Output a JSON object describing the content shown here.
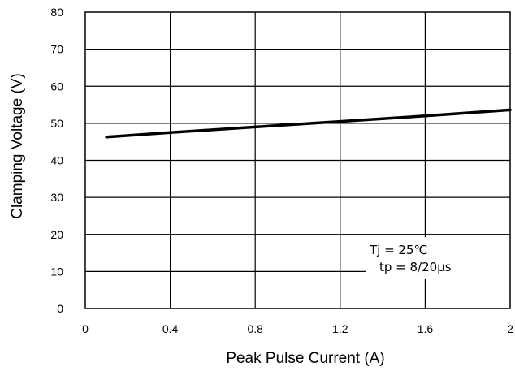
{
  "chart_data": {
    "type": "line",
    "title": "",
    "xlabel": "Peak Pulse Current (A)",
    "ylabel": "Clamping Voltage (V)",
    "xlim": [
      0,
      2
    ],
    "ylim": [
      0,
      80
    ],
    "x_ticks": [
      {
        "value": 0,
        "label": "0"
      },
      {
        "value": 0.4,
        "label": "0.4"
      },
      {
        "value": 0.8,
        "label": "0.8"
      },
      {
        "value": 1.2,
        "label": "1.2"
      },
      {
        "value": 1.6,
        "label": "1.6"
      },
      {
        "value": 2,
        "label": "2"
      }
    ],
    "y_ticks": [
      {
        "value": 0,
        "label": "0"
      },
      {
        "value": 10,
        "label": "10"
      },
      {
        "value": 20,
        "label": "20"
      },
      {
        "value": 30,
        "label": "30"
      },
      {
        "value": 40,
        "label": "40"
      },
      {
        "value": 50,
        "label": "50"
      },
      {
        "value": 60,
        "label": "60"
      },
      {
        "value": 70,
        "label": "70"
      },
      {
        "value": 80,
        "label": "80"
      }
    ],
    "grid": true,
    "series": [
      {
        "x": [
          0.1,
          0.4,
          0.8,
          1.2,
          1.6,
          2.0
        ],
        "y": [
          46.3,
          47.5,
          49.0,
          50.5,
          52.0,
          53.6
        ],
        "color": "#000000"
      }
    ],
    "annotation_lines": [
      "Tj = 25℃",
      "tp = 8/20μs"
    ]
  }
}
